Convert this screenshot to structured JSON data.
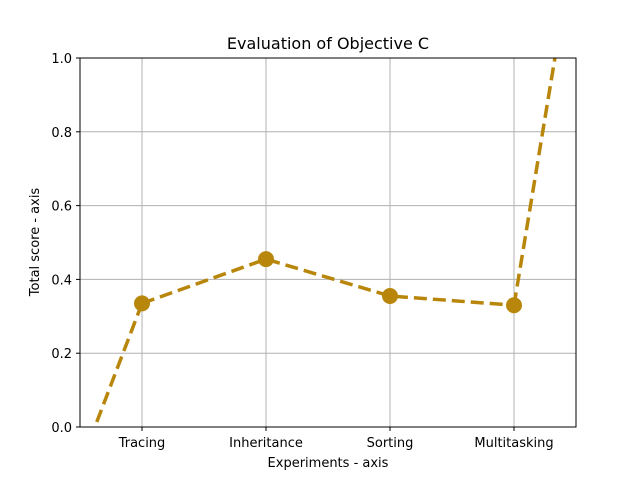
{
  "chart_data": {
    "type": "line",
    "title": "Evaluation of Objective C",
    "xlabel": "Experiments - axis",
    "ylabel": "Total score - axis",
    "categories": [
      "Tracing",
      "Inheritance",
      "Sorting",
      "Multitasking"
    ],
    "ylim": [
      0.0,
      1.0
    ],
    "yticks": [
      "0.0",
      "0.2",
      "0.4",
      "0.6",
      "0.8",
      "1.0"
    ],
    "grid": true,
    "series": [
      {
        "values": [
          0.335,
          0.455,
          0.355,
          0.33
        ],
        "color": "#b8860b",
        "line_style": "dashed",
        "marker": "circle"
      }
    ],
    "extension_segments": [
      {
        "from_category": "Tracing",
        "to_x_offset": -0.38,
        "to_y": 0.0
      },
      {
        "from_category": "Multitasking",
        "to_x_offset": 0.33,
        "to_y": 1.0
      }
    ]
  }
}
